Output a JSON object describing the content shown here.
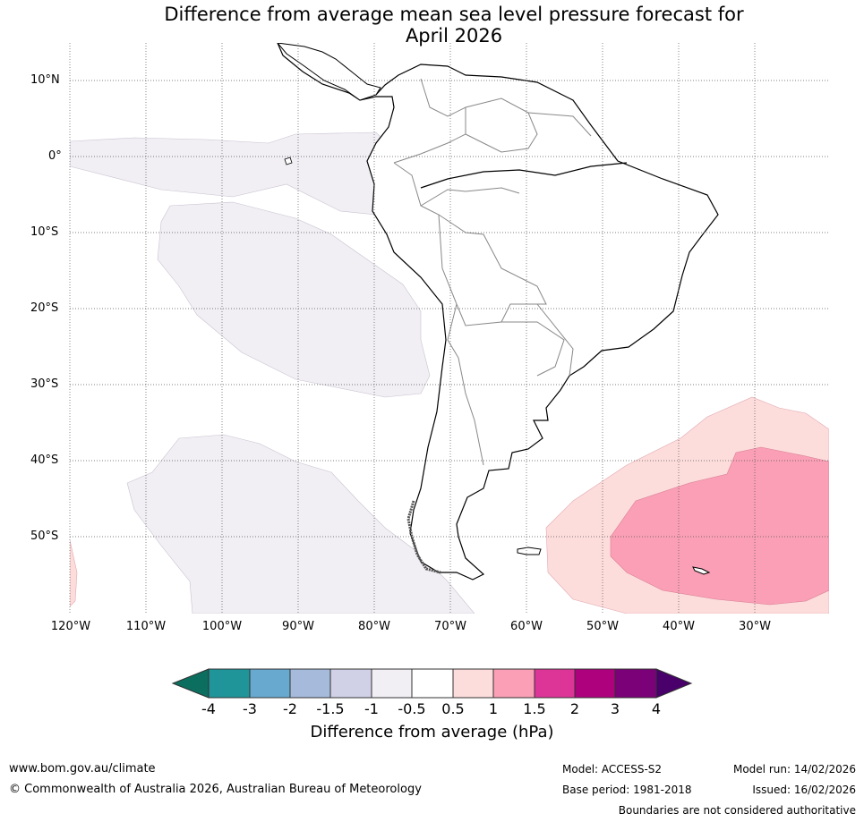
{
  "title": {
    "line1": "Difference from average mean sea level pressure forecast for",
    "line2": "April 2026"
  },
  "map": {
    "latitude_labels": [
      "10°N",
      "0°",
      "10°S",
      "20°S",
      "30°S",
      "40°S",
      "50°S"
    ],
    "longitude_labels": [
      "120°W",
      "110°W",
      "100°W",
      "90°W",
      "80°W",
      "70°W",
      "60°W",
      "50°W",
      "40°W",
      "30°W"
    ]
  },
  "colorbar": {
    "tick_labels": [
      "-4",
      "-3",
      "-2",
      "-1.5",
      "-1",
      "-0.5",
      "0.5",
      "1",
      "1.5",
      "2",
      "3",
      "4"
    ],
    "colors": {
      "lt_-4": "#0b6e5f",
      "-4_-3": "#1f959a",
      "-3_-2": "#67a9cf",
      "-2_-1.5": "#a6bbdb",
      "-1.5_-1": "#d0d1e6",
      "-1_-0.5": "#f1eef4",
      "-0.5_0.5": "#ffffff",
      "0.5_1": "#fddcdc",
      "1_1.5": "#fa9fb5",
      "1.5_2": "#dd3497",
      "2_3": "#ae017e",
      "3_4": "#7a0177",
      "gt_4": "#49006a"
    },
    "title": "Difference from average (hPa)"
  },
  "footer": {
    "website": "www.bom.gov.au/climate",
    "copyright": "© Commonwealth of Australia 2026, Australian Bureau of Meteorology",
    "model": "Model: ACCESS-S2",
    "base_period": "Base period: 1981-2018",
    "model_run": "Model run: 14/02/2026",
    "issued": "Issued: 16/02/2026",
    "disclaimer": "Boundaries are not considered authoritative"
  }
}
